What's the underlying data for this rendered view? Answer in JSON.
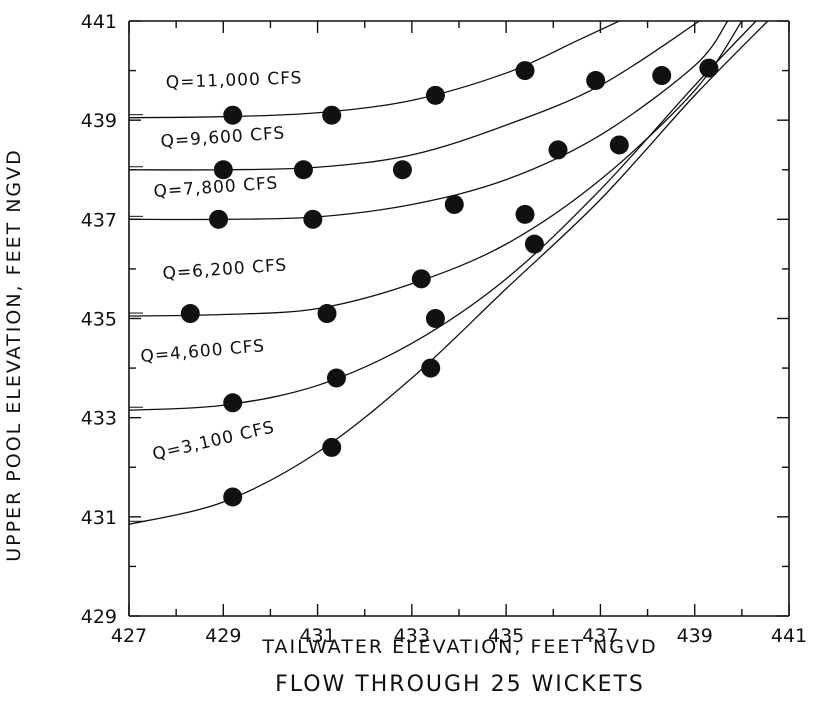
{
  "chart_data": {
    "type": "scatter",
    "title": "",
    "subtitle": "FLOW THROUGH 25 WICKETS",
    "xlabel": "TAILWATER ELEVATION, FEET NGVD",
    "ylabel": "UPPER POOL ELEVATION, FEET NGVD",
    "xlim": [
      427,
      441
    ],
    "ylim": [
      429,
      441
    ],
    "xticks": [
      427,
      429,
      431,
      433,
      435,
      437,
      439,
      441
    ],
    "yticks": [
      429,
      431,
      433,
      435,
      437,
      439,
      441
    ],
    "grid": false,
    "legend": "none",
    "series": [
      {
        "name": "Q=11,000 CFS",
        "points": [
          [
            429.2,
            439.1
          ],
          [
            431.3,
            439.1
          ],
          [
            433.5,
            439.5
          ],
          [
            435.4,
            440.0
          ],
          [
            436.9,
            439.8
          ],
          [
            438.3,
            439.9
          ],
          [
            439.3,
            440.05
          ]
        ]
      },
      {
        "name": "Q=9,600 CFS",
        "points": [
          [
            429.0,
            438.0
          ],
          [
            430.7,
            438.0
          ],
          [
            432.8,
            438.0
          ],
          [
            436.1,
            438.4
          ],
          [
            437.4,
            438.5
          ]
        ]
      },
      {
        "name": "Q=7,800 CFS",
        "points": [
          [
            428.9,
            437.0
          ],
          [
            430.9,
            437.0
          ],
          [
            433.9,
            437.3
          ],
          [
            435.4,
            437.1
          ],
          [
            435.6,
            436.5
          ]
        ]
      },
      {
        "name": "Q=6,200 CFS",
        "points": [
          [
            428.3,
            435.1
          ],
          [
            431.2,
            435.1
          ],
          [
            433.2,
            435.8
          ]
        ]
      },
      {
        "name": "Q=4,600 CFS",
        "points": [
          [
            429.2,
            433.3
          ],
          [
            431.4,
            433.8
          ],
          [
            433.5,
            435.0
          ]
        ]
      },
      {
        "name": "Q=3,100 CFS",
        "points": [
          [
            429.2,
            431.4
          ],
          [
            431.3,
            432.4
          ],
          [
            433.4,
            434.0
          ]
        ]
      }
    ],
    "curves": [
      {
        "series": "Q=11,000 CFS",
        "points": [
          [
            427,
            439.05
          ],
          [
            429,
            439.07
          ],
          [
            431,
            439.15
          ],
          [
            433,
            439.4
          ],
          [
            435,
            439.95
          ],
          [
            436.5,
            440.6
          ],
          [
            437.4,
            441
          ]
        ]
      },
      {
        "series": "Q=9,600 CFS",
        "points": [
          [
            427,
            438.0
          ],
          [
            429,
            438.0
          ],
          [
            431,
            438.05
          ],
          [
            433,
            438.3
          ],
          [
            435,
            438.9
          ],
          [
            437,
            439.7
          ],
          [
            439.1,
            441
          ]
        ]
      },
      {
        "series": "Q=7,800 CFS",
        "points": [
          [
            427,
            437.0
          ],
          [
            429,
            437.0
          ],
          [
            431,
            437.05
          ],
          [
            433,
            437.3
          ],
          [
            435,
            437.8
          ],
          [
            437,
            438.7
          ],
          [
            439,
            440.1
          ],
          [
            439.7,
            441
          ]
        ]
      },
      {
        "series": "Q=6,200 CFS",
        "points": [
          [
            427,
            435.05
          ],
          [
            429,
            435.08
          ],
          [
            431,
            435.2
          ],
          [
            433,
            435.7
          ],
          [
            435,
            436.5
          ],
          [
            437,
            437.8
          ],
          [
            439,
            439.6
          ],
          [
            440.0,
            441
          ]
        ]
      },
      {
        "series": "Q=4,600 CFS",
        "points": [
          [
            427,
            433.15
          ],
          [
            429,
            433.25
          ],
          [
            431,
            433.65
          ],
          [
            433,
            434.5
          ],
          [
            435,
            435.8
          ],
          [
            437,
            437.6
          ],
          [
            439,
            439.7
          ],
          [
            440.3,
            441
          ]
        ]
      },
      {
        "series": "Q=3,100 CFS",
        "points": [
          [
            427,
            430.85
          ],
          [
            429,
            431.3
          ],
          [
            431,
            432.3
          ],
          [
            433,
            433.8
          ],
          [
            435,
            435.6
          ],
          [
            437,
            437.4
          ],
          [
            439,
            439.5
          ],
          [
            440.55,
            441
          ]
        ]
      }
    ],
    "annotations": [
      {
        "text": "Q=11,000 CFS",
        "series": "Q=11,000 CFS"
      },
      {
        "text": "Q=9,600 CFS",
        "series": "Q=9,600 CFS"
      },
      {
        "text": "Q=7,800 CFS",
        "series": "Q=7,800 CFS"
      },
      {
        "text": "Q=6,200 CFS",
        "series": "Q=6,200 CFS"
      },
      {
        "text": "Q=4,600 CFS",
        "series": "Q=4,600 CFS"
      },
      {
        "text": "Q=3,100 CFS",
        "series": "Q=3,100 CFS"
      }
    ],
    "colors": {
      "ink": "#111111",
      "background": "#ffffff"
    }
  }
}
